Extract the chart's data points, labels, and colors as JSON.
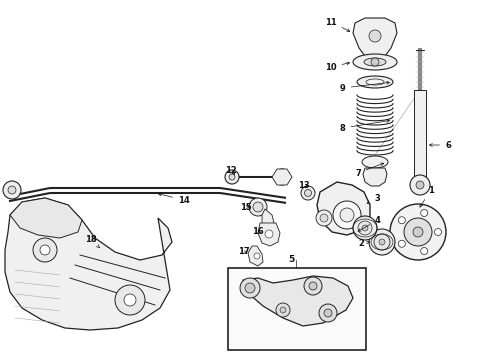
{
  "bg_color": "#ffffff",
  "line_color": "#222222",
  "label_color": "#111111",
  "figsize": [
    4.9,
    3.6
  ],
  "dpi": 100,
  "xlim": [
    0,
    490
  ],
  "ylim": [
    0,
    360
  ]
}
